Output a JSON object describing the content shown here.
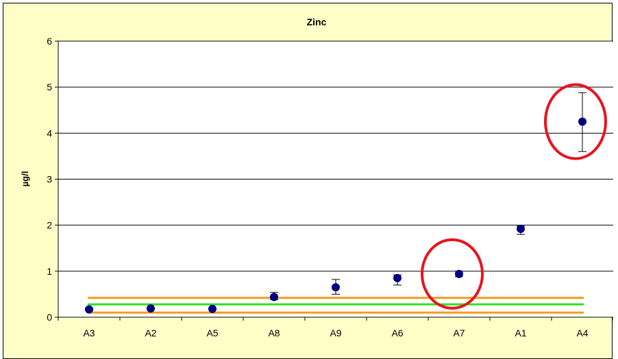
{
  "chart_data": {
    "type": "scatter",
    "title": "Zinc",
    "xlabel": "",
    "ylabel": "µg/l",
    "ylim": [
      0,
      6
    ],
    "yticks": [
      "0",
      "1",
      "2",
      "3",
      "4",
      "5",
      "6"
    ],
    "grid": true,
    "categories": [
      "A3",
      "A2",
      "A5",
      "A8",
      "A9",
      "A6",
      "A7",
      "A1",
      "A4"
    ],
    "series": [
      {
        "values": [
          0.17,
          0.19,
          0.18,
          0.44,
          0.65,
          0.85,
          0.94,
          1.92,
          4.25
        ],
        "error_low": [
          0.15,
          0.18,
          0.17,
          0.38,
          0.5,
          0.7,
          0.88,
          1.8,
          3.6
        ],
        "error_high": [
          0.19,
          0.2,
          0.19,
          0.54,
          0.82,
          0.92,
          1.0,
          1.98,
          4.88
        ],
        "color": "#000080"
      }
    ],
    "reference_lines": [
      {
        "value": 0.42,
        "color": "#f79a1e"
      },
      {
        "value": 0.28,
        "color": "#33dd22"
      },
      {
        "value": 0.1,
        "color": "#f79a1e"
      }
    ],
    "highlighted_categories": [
      "A7",
      "A4"
    ],
    "highlight_color": "#e8141c"
  }
}
